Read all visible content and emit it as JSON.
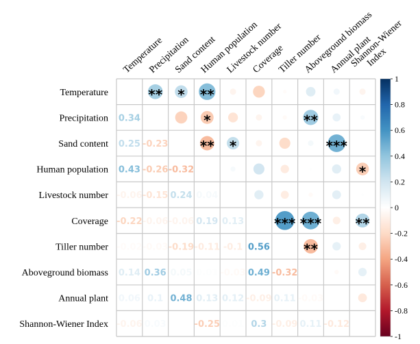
{
  "chart_data": {
    "type": "heatmap",
    "variables": [
      "Temperature",
      "Precipitation",
      "Sand content",
      "Human population",
      "Livestock number",
      "Coverage",
      "Tiller number",
      "Aboveground biomass",
      "Annual plant",
      "Shannon-Wiener Index"
    ],
    "lower_triangle": [
      [],
      [
        0.34
      ],
      [
        0.25,
        -0.23
      ],
      [
        0.43,
        -0.26,
        -0.32
      ],
      [
        -0.06,
        -0.15,
        0.24,
        0.04
      ],
      [
        -0.22,
        -0.06,
        -0.06,
        0.19,
        0.13
      ],
      [
        -0.02,
        -0.03,
        -0.19,
        -0.11,
        -0.1,
        0.56
      ],
      [
        0.14,
        0.36,
        0.05,
        0.01,
        -0.03,
        0.49,
        -0.32
      ],
      [
        0.06,
        0.1,
        0.48,
        0.13,
        0.12,
        -0.09,
        0.11,
        -0.03
      ],
      [
        -0.06,
        0.03,
        0,
        -0.25,
        0.01,
        0.3,
        -0.09,
        0.11,
        -0.12
      ]
    ],
    "upper_display": "circle",
    "lower_display": "number",
    "significance": [
      {
        "row": 0,
        "col": 1,
        "stars": "**"
      },
      {
        "row": 0,
        "col": 2,
        "stars": "*"
      },
      {
        "row": 0,
        "col": 3,
        "stars": "**"
      },
      {
        "row": 1,
        "col": 3,
        "stars": "*"
      },
      {
        "row": 1,
        "col": 7,
        "stars": "**"
      },
      {
        "row": 2,
        "col": 3,
        "stars": "**"
      },
      {
        "row": 2,
        "col": 4,
        "stars": "*"
      },
      {
        "row": 2,
        "col": 8,
        "stars": "***"
      },
      {
        "row": 3,
        "col": 9,
        "stars": "*"
      },
      {
        "row": 5,
        "col": 6,
        "stars": "***"
      },
      {
        "row": 5,
        "col": 7,
        "stars": "***"
      },
      {
        "row": 5,
        "col": 9,
        "stars": "**"
      },
      {
        "row": 6,
        "col": 7,
        "stars": "**"
      }
    ],
    "colorbar": {
      "range": [
        -1,
        1
      ],
      "ticks": [
        "1",
        "0.8",
        "0.6",
        "0.4",
        "0.2",
        "0",
        "-0.2",
        "-0.4",
        "-0.6",
        "-0.8",
        "-1"
      ],
      "colors": [
        "#67001F",
        "#B2182B",
        "#D6604D",
        "#F4A582",
        "#FDDBC7",
        "#FFFFFF",
        "#D1E5F0",
        "#92C5DE",
        "#4393C3",
        "#2166AC",
        "#053061"
      ]
    },
    "grid": true
  }
}
